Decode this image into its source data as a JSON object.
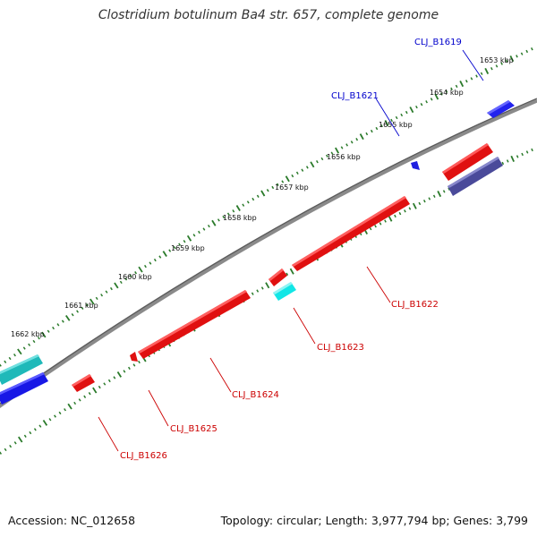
{
  "title": "Clostridium botulinum Ba4 str. 657, complete genome",
  "footer": {
    "accession": "Accession: NC_012658",
    "summary": "Topology: circular; Length: 3,977,794 bp; Genes: 3,799"
  },
  "colors": {
    "forward_label": "#0000cc",
    "reverse_label": "#cc0000",
    "tick": "#2a7a2a",
    "backbone": "#7a7a7a"
  },
  "ticks": [
    {
      "label": "1653 kbp"
    },
    {
      "label": "1654 kbp"
    },
    {
      "label": "1655 kbp"
    },
    {
      "label": "1656 kbp"
    },
    {
      "label": "1657 kbp"
    },
    {
      "label": "1658 kbp"
    },
    {
      "label": "1659 kbp"
    },
    {
      "label": "1660 kbp"
    },
    {
      "label": "1661 kbp"
    },
    {
      "label": "1662 kbp"
    }
  ],
  "genes": [
    {
      "label": "CLJ_B1619",
      "strand": "forward"
    },
    {
      "label": "CLJ_B1621",
      "strand": "forward"
    },
    {
      "label": "CLJ_B1622",
      "strand": "reverse"
    },
    {
      "label": "CLJ_B1623",
      "strand": "reverse"
    },
    {
      "label": "CLJ_B1624",
      "strand": "reverse"
    },
    {
      "label": "CLJ_B1625",
      "strand": "reverse"
    },
    {
      "label": "CLJ_B1626",
      "strand": "reverse"
    }
  ]
}
